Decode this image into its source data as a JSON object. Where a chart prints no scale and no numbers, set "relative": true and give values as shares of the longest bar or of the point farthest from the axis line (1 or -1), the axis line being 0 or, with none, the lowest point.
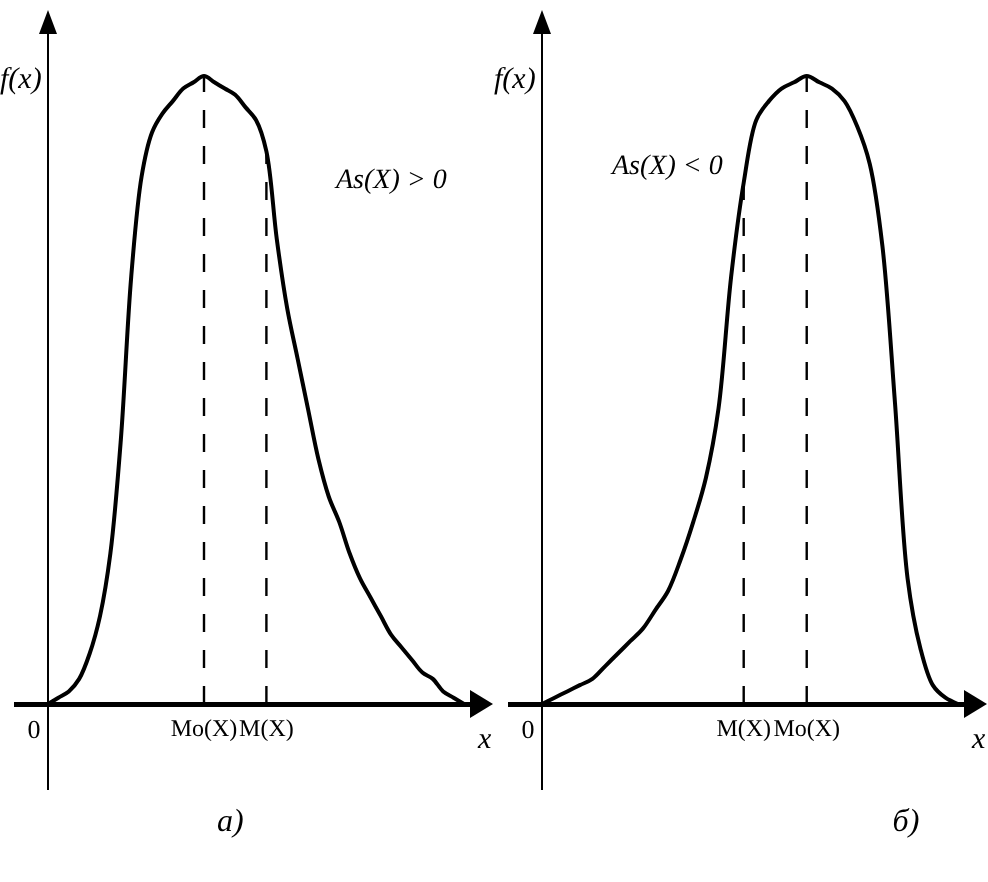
{
  "chart_data": [
    {
      "type": "line",
      "title": "а)",
      "xlabel": "x",
      "ylabel": "f(x)",
      "annotations": [
        "As(X) > 0"
      ],
      "categories": [
        "0",
        null,
        null,
        null,
        null,
        null,
        null,
        null,
        null,
        null,
        null,
        null,
        null,
        null,
        null,
        "Mo(X)",
        null,
        null,
        null,
        null,
        null,
        "M(X)",
        null,
        null,
        null,
        null,
        null,
        null,
        null,
        null,
        null,
        null,
        null,
        null,
        null,
        null,
        null,
        null,
        null,
        null,
        null
      ],
      "relative": true,
      "series": [
        {
          "color": "#000000",
          "values": [
            0,
            0.01,
            0.02,
            0.04,
            0.08,
            0.14,
            0.24,
            0.42,
            0.68,
            0.84,
            0.91,
            0.94,
            0.96,
            0.98,
            0.99,
            1,
            0.99,
            0.98,
            0.97,
            0.95,
            0.93,
            0.88,
            0.74,
            0.63,
            0.55,
            0.47,
            0.39,
            0.33,
            0.29,
            0.24,
            0.2,
            0.17,
            0.14,
            0.11,
            0.09,
            0.07,
            0.05,
            0.04,
            0.02,
            0.01,
            0
          ]
        }
      ],
      "ref_lines": [
        {
          "axis": "x",
          "value": "Mo(X)",
          "line_style": "dashed",
          "color": "#000000"
        },
        {
          "axis": "x",
          "value": "M(X)",
          "line_style": "dashed",
          "color": "#000000"
        }
      ],
      "grid": false,
      "marker": "none",
      "line_style": "solid"
    },
    {
      "type": "line",
      "title": "б)",
      "xlabel": "x",
      "ylabel": "f(x)",
      "annotations": [
        "As(X) < 0"
      ],
      "categories": [
        "0",
        null,
        null,
        null,
        null,
        null,
        null,
        null,
        null,
        null,
        null,
        null,
        null,
        null,
        null,
        null,
        "M(X)",
        null,
        null,
        null,
        null,
        "Mo(X)",
        null,
        null,
        null,
        null,
        null,
        null,
        null,
        null,
        null,
        null,
        null,
        null
      ],
      "relative": true,
      "series": [
        {
          "color": "#000000",
          "values": [
            0,
            0.01,
            0.02,
            0.03,
            0.04,
            0.06,
            0.08,
            0.1,
            0.12,
            0.15,
            0.18,
            0.23,
            0.29,
            0.36,
            0.47,
            0.68,
            0.83,
            0.93,
            0.96,
            0.98,
            0.99,
            1,
            0.99,
            0.98,
            0.96,
            0.92,
            0.86,
            0.73,
            0.48,
            0.2,
            0.09,
            0.03,
            0.01,
            0
          ]
        }
      ],
      "ref_lines": [
        {
          "axis": "x",
          "value": "M(X)",
          "line_style": "dashed",
          "color": "#000000"
        },
        {
          "axis": "x",
          "value": "Mo(X)",
          "line_style": "dashed",
          "color": "#000000"
        }
      ],
      "grid": false,
      "marker": "none",
      "line_style": "solid"
    }
  ]
}
